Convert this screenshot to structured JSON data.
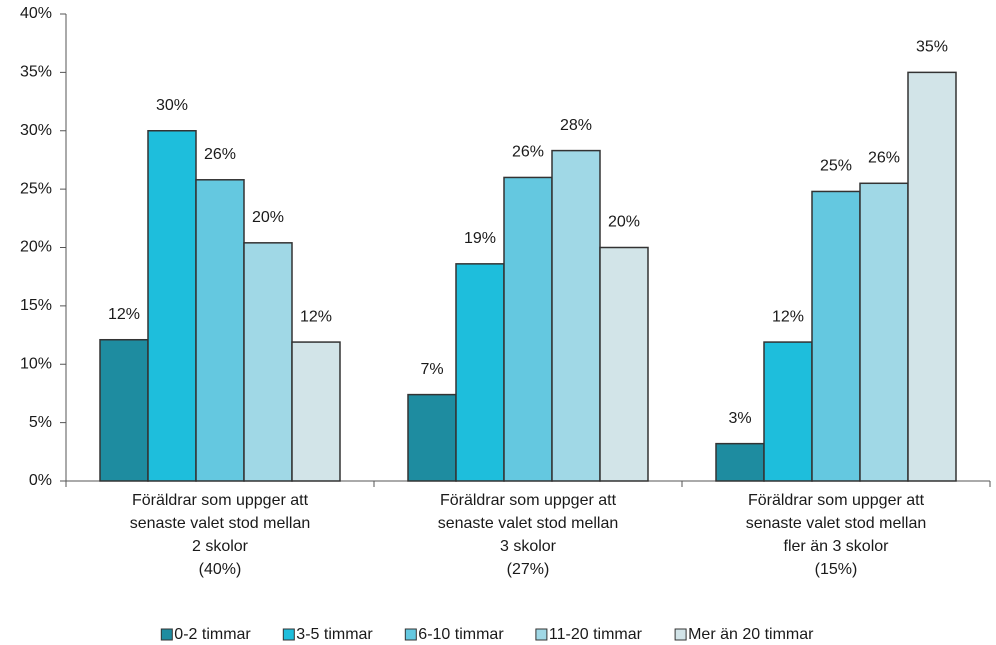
{
  "chart_data": {
    "type": "bar",
    "categories": [
      [
        "Föräldrar som uppger att",
        "senaste valet stod mellan",
        "2 skolor",
        "(40%)"
      ],
      [
        "Föräldrar som uppger att",
        "senaste valet stod mellan",
        "3 skolor",
        "(27%)"
      ],
      [
        "Föräldrar som uppger att",
        "senaste valet stod mellan",
        "fler än 3 skolor",
        "(15%)"
      ]
    ],
    "series": [
      {
        "name": "0-2 timmar",
        "color": "#1e8ca0",
        "values": [
          12.1,
          7.4,
          3.2
        ],
        "value_labels": [
          "12%",
          "7%",
          "3%"
        ]
      },
      {
        "name": "3-5 timmar",
        "color": "#1ebedc",
        "values": [
          30.0,
          18.6,
          11.9
        ],
        "value_labels": [
          "30%",
          "19%",
          "12%"
        ]
      },
      {
        "name": "6-10 timmar",
        "color": "#64c8e0",
        "values": [
          25.8,
          26.0,
          24.8
        ],
        "value_labels": [
          "26%",
          "26%",
          "25%"
        ]
      },
      {
        "name": "11-20 timmar",
        "color": "#a0d8e6",
        "values": [
          20.4,
          28.3,
          25.5
        ],
        "value_labels": [
          "20%",
          "28%",
          "26%"
        ]
      },
      {
        "name": "Mer än 20 timmar",
        "color": "#d2e4e8",
        "values": [
          11.9,
          20.0,
          35.0
        ],
        "value_labels": [
          "12%",
          "20%",
          "35%"
        ]
      }
    ],
    "ylim": [
      0,
      40
    ],
    "yticks": [
      {
        "value": 0,
        "label": "0%"
      },
      {
        "value": 5,
        "label": "5%"
      },
      {
        "value": 10,
        "label": "10%"
      },
      {
        "value": 15,
        "label": "15%"
      },
      {
        "value": 20,
        "label": "20%"
      },
      {
        "value": 25,
        "label": "25%"
      },
      {
        "value": 30,
        "label": "30%"
      },
      {
        "value": 35,
        "label": "35%"
      },
      {
        "value": 40,
        "label": "40%"
      }
    ],
    "legend": "bottom"
  }
}
